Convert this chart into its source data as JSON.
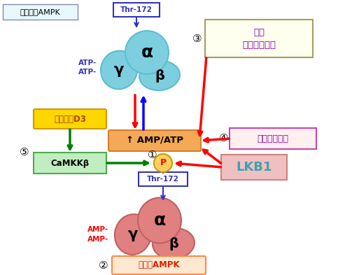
{
  "bg_color": "#ffffff",
  "inactive_ampk_label": "不活性型AMPK",
  "active_ampk_label": "活性型AMPK",
  "thr172_label": "Thr-172",
  "amp_atp_label": "↑ AMP/ATP",
  "lkb1_label": "LKB1",
  "camkkb_label": "CaMKKβ",
  "vitamin_label": "ビタミンD3",
  "undo_label": "運動\nカロリー制限",
  "metformin_label": "メトホルミン",
  "atp_label1": "ATP-",
  "atp_label2": "ATP-",
  "amp_label1": "AMP-",
  "amp_label2": "AMP-",
  "alpha_label": "α",
  "beta_label": "β",
  "gamma_label": "γ",
  "circle1": "①",
  "circle2": "②",
  "circle3": "③",
  "circle4": "④",
  "circle5": "⑤",
  "p_label": "P",
  "cyan": "#7DCFE0",
  "cyan_edge": "#5ABED0",
  "pink": "#E08080",
  "pink_edge": "#C06060",
  "orange_box": "#F5A855",
  "orange_edge": "#D08030",
  "lkb1_face": "#F0C0C0",
  "lkb1_edge": "#D08080",
  "lkb1_text": "#40A0B0",
  "undo_face": "#FFFFF0",
  "undo_edge": "#A0A060",
  "undo_text": "#8800AA",
  "met_face": "#FFF0F0",
  "met_edge": "#CC44AA",
  "met_text": "#9900AA",
  "vit_face": "#FFD700",
  "vit_edge": "#CC9900",
  "vit_text": "#AA4400",
  "cam_face": "#C0EEC0",
  "cam_edge": "#50AA50",
  "cam_text": "#000000",
  "inactive_face": "#E8F8FF",
  "inactive_edge": "#8888AA",
  "active_face": "#FFE8D0",
  "active_edge": "#FF8844",
  "active_text": "#DD2200",
  "thr_face": "white",
  "thr_edge": "#3333BB",
  "thr_text": "#3333BB",
  "p_face": "#FFD060",
  "p_edge": "#CC9900"
}
